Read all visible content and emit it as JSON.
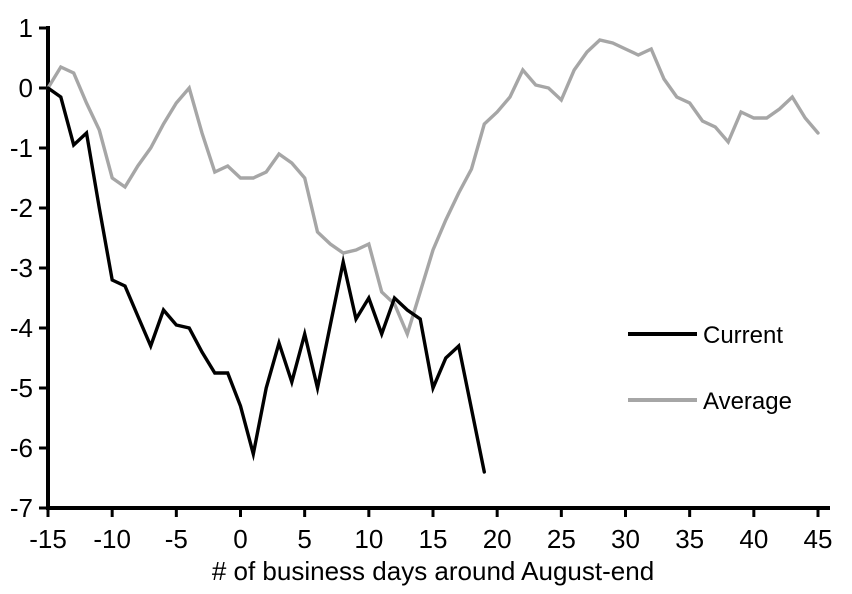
{
  "page": {
    "background": "#ffffff"
  },
  "chart_data": {
    "type": "line",
    "title": "",
    "xlabel": "# of business days around August-end",
    "ylabel": "",
    "xlim": [
      -15,
      45
    ],
    "ylim": [
      -7,
      1
    ],
    "x_ticks": [
      -15,
      -10,
      -5,
      0,
      5,
      10,
      15,
      20,
      25,
      30,
      35,
      40,
      45
    ],
    "y_ticks": [
      1,
      0,
      -1,
      -2,
      -3,
      -4,
      -5,
      -6,
      -7
    ],
    "grid": false,
    "legend_position": "right-middle",
    "axis_color": "#000000",
    "series": [
      {
        "name": "Current",
        "color": "#000000",
        "x": [
          -15,
          -14,
          -13,
          -12,
          -11,
          -10,
          -9,
          -8,
          -7,
          -6,
          -5,
          -4,
          -3,
          -2,
          -1,
          0,
          1,
          2,
          3,
          4,
          5,
          6,
          7,
          8,
          9,
          10,
          11,
          12,
          13,
          14,
          15,
          16,
          17,
          18,
          19
        ],
        "values": [
          0,
          -0.15,
          -0.95,
          -0.75,
          -2.0,
          -3.2,
          -3.3,
          -3.8,
          -4.3,
          -3.7,
          -3.95,
          -4.0,
          -4.4,
          -4.75,
          -4.75,
          -5.3,
          -6.1,
          -5.0,
          -4.25,
          -4.9,
          -4.1,
          -5.0,
          -3.95,
          -2.9,
          -3.85,
          -3.5,
          -4.1,
          -3.5,
          -3.7,
          -3.85,
          -5.0,
          -4.5,
          -4.3,
          -5.35,
          -6.4
        ]
      },
      {
        "name": "Average",
        "color": "#a6a6a6",
        "x": [
          -15,
          -14,
          -13,
          -12,
          -11,
          -10,
          -9,
          -8,
          -7,
          -6,
          -5,
          -4,
          -3,
          -2,
          -1,
          0,
          1,
          2,
          3,
          4,
          5,
          6,
          7,
          8,
          9,
          10,
          11,
          12,
          13,
          14,
          15,
          16,
          17,
          18,
          19,
          20,
          21,
          22,
          23,
          24,
          25,
          26,
          27,
          28,
          29,
          30,
          31,
          32,
          33,
          34,
          35,
          36,
          37,
          38,
          39,
          40,
          41,
          42,
          43,
          44,
          45
        ],
        "values": [
          0,
          0.35,
          0.25,
          -0.25,
          -0.7,
          -1.5,
          -1.65,
          -1.3,
          -1.0,
          -0.6,
          -0.25,
          0.0,
          -0.75,
          -1.4,
          -1.3,
          -1.5,
          -1.5,
          -1.4,
          -1.1,
          -1.25,
          -1.5,
          -2.4,
          -2.6,
          -2.75,
          -2.7,
          -2.6,
          -3.4,
          -3.6,
          -4.1,
          -3.4,
          -2.7,
          -2.2,
          -1.75,
          -1.35,
          -0.6,
          -0.4,
          -0.15,
          0.3,
          0.05,
          0.0,
          -0.2,
          0.3,
          0.6,
          0.8,
          0.75,
          0.65,
          0.55,
          0.65,
          0.15,
          -0.15,
          -0.25,
          -0.55,
          -0.65,
          -0.9,
          -0.4,
          -0.5,
          -0.5,
          -0.35,
          -0.15,
          -0.5,
          -0.75
        ]
      }
    ]
  },
  "legend": {
    "current_label": "Current",
    "average_label": "Average"
  }
}
